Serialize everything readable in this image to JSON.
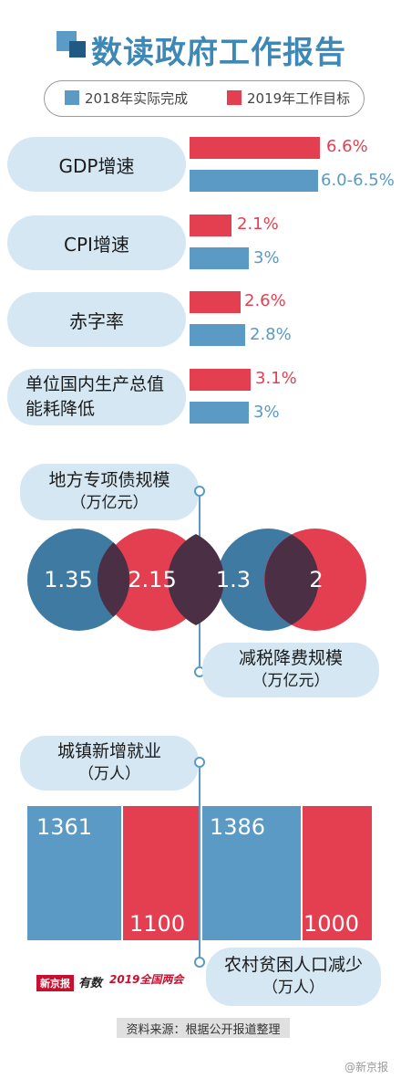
{
  "title": "数读政府工作报告",
  "legend": {
    "actual_2018": "2018年实际完成",
    "target_2019": "2019年工作目标"
  },
  "colors": {
    "target_2019": "#e43f50",
    "actual_2018": "#5a9ac5",
    "accent": "#3d88b5",
    "pill_bg": "#d5e7f3"
  },
  "chart_data": [
    {
      "type": "bar",
      "orientation": "horizontal",
      "categories": [
        "GDP增速",
        "CPI增速",
        "赤字率",
        "单位国内生产总值能耗降低"
      ],
      "series": [
        {
          "name": "2019年工作目标",
          "values": [
            6.6,
            2.1,
            2.6,
            3.1
          ],
          "labels": [
            "6.6%",
            "2.1%",
            "2.6%",
            "3.1%"
          ]
        },
        {
          "name": "2018年实际完成",
          "values": [
            6.25,
            3,
            2.8,
            3
          ],
          "labels": [
            "6.0-6.5%",
            "3%",
            "2.8%",
            "3%"
          ]
        }
      ]
    },
    {
      "type": "bubble",
      "groups": [
        {
          "label": "地方专项债规模",
          "unit": "（万亿元）",
          "values": {
            "2018": 1.35,
            "2019": 2.15
          }
        },
        {
          "label": "减税降费规模",
          "unit": "（万亿元）",
          "values": {
            "2018": 1.3,
            "2019": 2
          }
        }
      ]
    },
    {
      "type": "bar",
      "groups": [
        {
          "label": "城镇新增就业",
          "unit": "（万人）",
          "values": {
            "2018": 1361,
            "2019": 1100
          }
        },
        {
          "label": "农村贫困人口减少",
          "unit": "（万人）",
          "values": {
            "2018": 1386,
            "2019": 1000
          }
        }
      ]
    }
  ],
  "indicators": {
    "gdp": {
      "label": "GDP增速",
      "target": "6.6%",
      "actual": "6.0-6.5%"
    },
    "cpi": {
      "label": "CPI增速",
      "target": "2.1%",
      "actual": "3%"
    },
    "deficit": {
      "label": "赤字率",
      "target": "2.6%",
      "actual": "2.8%"
    },
    "energy": {
      "label_line1": "单位国内生产总值",
      "label_line2": "能耗降低",
      "target": "3.1%",
      "actual": "3%"
    }
  },
  "bubbles": {
    "special_bonds": {
      "label": "地方专项债规模",
      "unit": "（万亿元）",
      "v2018": "1.35",
      "v2019": "2.15"
    },
    "tax_cut": {
      "label": "减税降费规模",
      "unit": "（万亿元）",
      "v2018": "1.3",
      "v2019": "2"
    }
  },
  "employment": {
    "urban_jobs": {
      "label": "城镇新增就业",
      "unit": "（万人）",
      "v2018": "1361",
      "v2019": "1100"
    },
    "poverty": {
      "label": "农村贫困人口减少",
      "unit": "（万人）",
      "v2018": "1386",
      "v2019": "1000"
    }
  },
  "credit": "资料来源：根据公开报道整理",
  "logos": {
    "xinjingbao": "新京报",
    "youshu": "有数",
    "lianghui": "2019全国两会"
  },
  "watermark": "@新京报"
}
